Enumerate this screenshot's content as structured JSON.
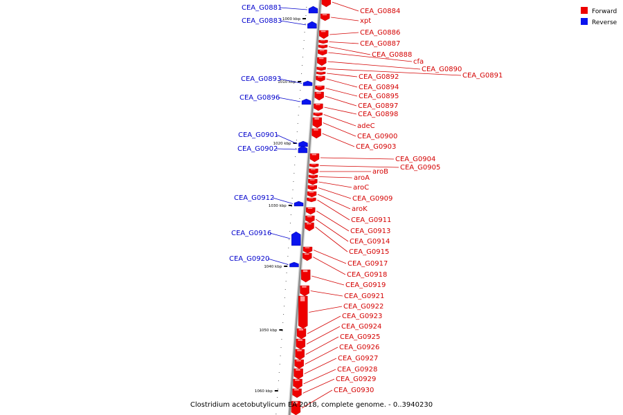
{
  "legend": [
    {
      "label": "Forward",
      "color": "#ee0000"
    },
    {
      "label": "Reverse",
      "color": "#0a14ee"
    }
  ],
  "caption": "Clostridium acetobutylicum EA 2018, complete genome. - 0..3940230",
  "colors": {
    "forward": "#ee0000",
    "reverse": "#0a14ee",
    "forward_label": "#d40000",
    "reverse_label": "#0000cc",
    "backbone": "#8a8a8a"
  },
  "scale_labels": [
    "1000 kbp",
    "1010 kbp",
    "1020 kbp",
    "1030 kbp",
    "1040 kbp",
    "1050 kbp",
    "1060 kbp"
  ],
  "forward_genes": [
    "CEA_G0884",
    "xpt",
    "CEA_G0886",
    "CEA_G0887",
    "CEA_G0888",
    "cfa",
    "CEA_G0890",
    "CEA_G0891",
    "CEA_G0892",
    "CEA_G0894",
    "CEA_G0895",
    "CEA_G0897",
    "CEA_G0898",
    "adeC",
    "CEA_G0900",
    "CEA_G0903",
    "CEA_G0904",
    "CEA_G0905",
    "aroB",
    "aroA",
    "aroC",
    "CEA_G0909",
    "aroK",
    "CEA_G0911",
    "CEA_G0913",
    "CEA_G0914",
    "CEA_G0915",
    "CEA_G0917",
    "CEA_G0918",
    "CEA_G0919",
    "CEA_G0921",
    "CEA_G0922",
    "CEA_G0923",
    "CEA_G0924",
    "CEA_G0925",
    "CEA_G0926",
    "CEA_G0927",
    "CEA_G0928",
    "CEA_G0929",
    "CEA_G0930"
  ],
  "reverse_genes": [
    "CEA_G0881",
    "CEA_G0883",
    "CEA_G0893",
    "CEA_G0896",
    "CEA_G0901",
    "CEA_G0902",
    "CEA_G0912",
    "CEA_G0916",
    "CEA_G0920"
  ]
}
